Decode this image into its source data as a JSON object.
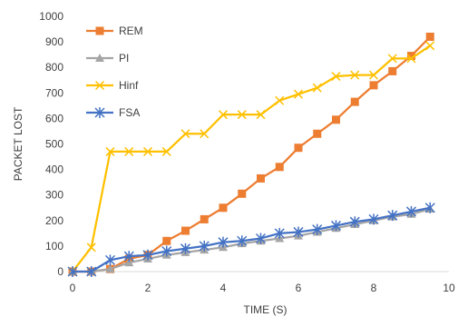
{
  "chart_data": {
    "type": "line",
    "xlabel": "TIME (S)",
    "ylabel": "PACKET LOST",
    "xlim": [
      0,
      10
    ],
    "ylim": [
      0,
      1000
    ],
    "xticks": [
      0,
      2,
      4,
      6,
      8,
      10
    ],
    "yticks": [
      0,
      100,
      200,
      300,
      400,
      500,
      600,
      700,
      800,
      900,
      1000
    ],
    "grid": "none",
    "legend_position": "top-left",
    "series": [
      {
        "name": "REM",
        "color": "#ED7D31",
        "marker": "square",
        "x": [
          0,
          0.5,
          1,
          1.5,
          2,
          2.5,
          3,
          3.5,
          4,
          4.5,
          5,
          5.5,
          6,
          6.5,
          7,
          7.5,
          8,
          8.5,
          9,
          9.5
        ],
        "y": [
          0,
          0,
          10,
          50,
          65,
          120,
          160,
          205,
          250,
          305,
          365,
          410,
          485,
          540,
          595,
          665,
          730,
          785,
          845,
          920
        ]
      },
      {
        "name": "PI",
        "color": "#A5A5A5",
        "marker": "triangle",
        "x": [
          0,
          0.5,
          1,
          1.5,
          2,
          2.5,
          3,
          3.5,
          4,
          4.5,
          5,
          5.5,
          6,
          6.5,
          7,
          7.5,
          8,
          8.5,
          9,
          9.5
        ],
        "y": [
          0,
          0,
          10,
          35,
          50,
          65,
          75,
          85,
          95,
          110,
          120,
          130,
          140,
          155,
          170,
          185,
          200,
          215,
          225,
          245
        ]
      },
      {
        "name": "Hinf",
        "color": "#FFC000",
        "marker": "x",
        "x": [
          0,
          0.5,
          1,
          1.5,
          2,
          2.5,
          3,
          3.5,
          4,
          4.5,
          5,
          5.5,
          6,
          6.5,
          7,
          7.5,
          8,
          8.5,
          9,
          9.5
        ],
        "y": [
          0,
          95,
          470,
          470,
          470,
          470,
          540,
          540,
          615,
          615,
          615,
          670,
          695,
          720,
          765,
          770,
          770,
          835,
          835,
          885
        ]
      },
      {
        "name": "FSA",
        "color": "#4472C4",
        "marker": "star",
        "x": [
          0,
          0.5,
          1,
          1.5,
          2,
          2.5,
          3,
          3.5,
          4,
          4.5,
          5,
          5.5,
          6,
          6.5,
          7,
          7.5,
          8,
          8.5,
          9,
          9.5
        ],
        "y": [
          0,
          0,
          45,
          60,
          65,
          80,
          90,
          100,
          115,
          120,
          130,
          150,
          155,
          165,
          180,
          195,
          205,
          220,
          235,
          250
        ]
      }
    ]
  }
}
